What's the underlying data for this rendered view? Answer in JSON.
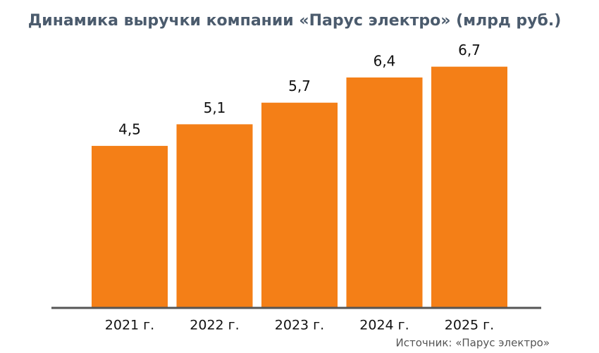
{
  "chart_data": {
    "type": "bar",
    "title": "Динамика выручки компании «Парус электро» (млрд руб.)",
    "categories": [
      "2021 г.",
      "2022 г.",
      "2023 г.",
      "2024 г.",
      "2025 г."
    ],
    "values": [
      4.5,
      5.1,
      5.7,
      6.4,
      6.7
    ],
    "value_labels": [
      "4,5",
      "5,1",
      "5,7",
      "6,4",
      "6,7"
    ],
    "color": "#f47f17",
    "source": "Источник: «Парус электро»"
  }
}
